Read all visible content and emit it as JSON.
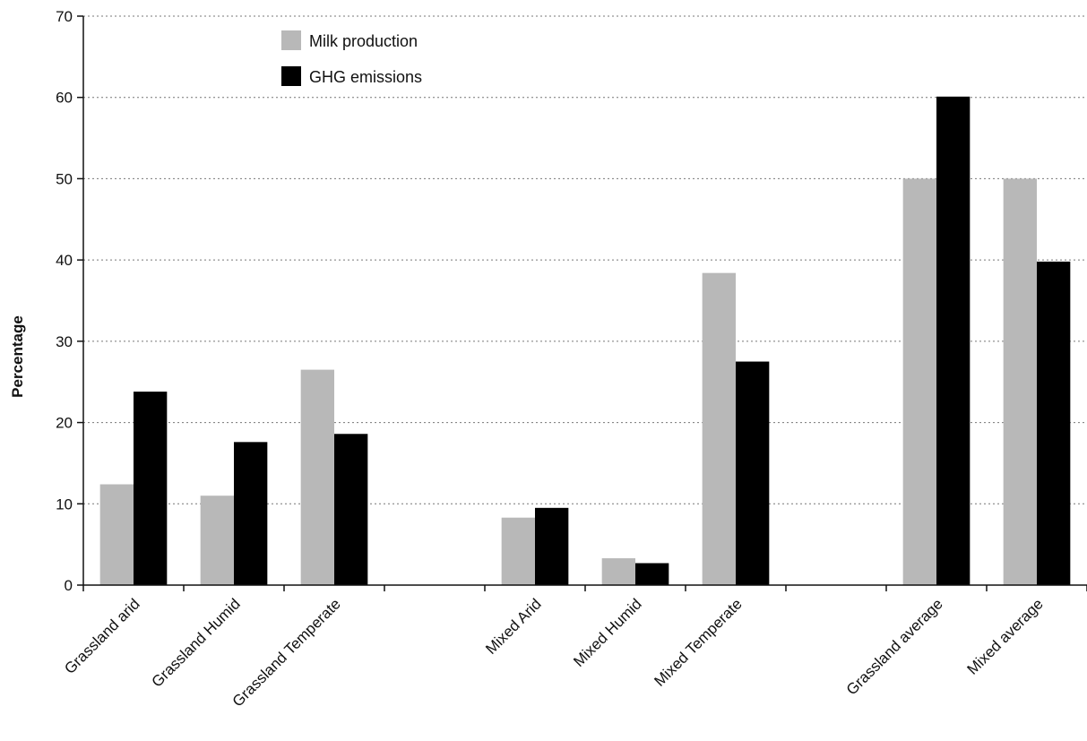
{
  "chart_data": {
    "type": "bar",
    "title": "",
    "xlabel": "",
    "ylabel": "Percentage",
    "ylim": [
      0,
      70
    ],
    "yticks": [
      0,
      10,
      20,
      30,
      40,
      50,
      60,
      70
    ],
    "grid": "horizontal dotted",
    "legend_position": "top-left",
    "categories": [
      "Grassland arid",
      "Grassland Humid",
      "Grassland Temperate",
      "",
      "Mixed Arid",
      "Mixed Humid",
      "Mixed Temperate",
      "",
      "Grassland average",
      "Mixed average"
    ],
    "series": [
      {
        "name": "Milk production",
        "color": "#b8b8b8",
        "values": [
          12.4,
          11.0,
          26.5,
          null,
          8.3,
          3.3,
          38.4,
          null,
          50.0,
          50.0
        ]
      },
      {
        "name": "GHG emissions",
        "color": "#000000",
        "values": [
          23.8,
          17.6,
          18.6,
          null,
          9.5,
          2.7,
          27.5,
          null,
          60.1,
          39.8
        ]
      }
    ]
  }
}
